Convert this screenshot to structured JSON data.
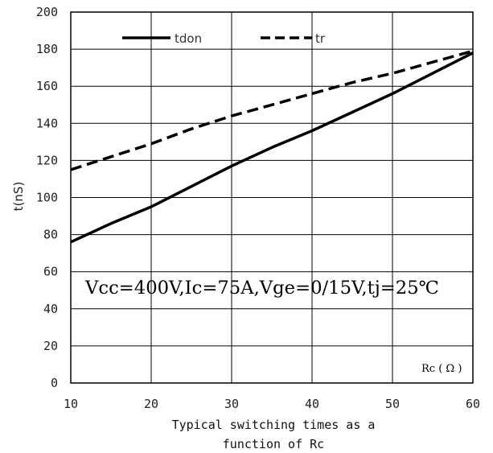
{
  "chart_data": {
    "type": "line",
    "title": "",
    "xlabel": "Rc ( Ω )",
    "ylabel": "t(nS)",
    "xlim": [
      10,
      60
    ],
    "ylim": [
      0,
      200
    ],
    "xticks": [
      10,
      20,
      30,
      40,
      50,
      60
    ],
    "yticks": [
      0,
      20,
      40,
      60,
      80,
      100,
      120,
      140,
      160,
      180,
      200
    ],
    "grid": true,
    "legend_position": "top",
    "series": [
      {
        "name": "tdon",
        "style": "solid",
        "x": [
          10,
          15,
          20,
          25,
          30,
          35,
          40,
          45,
          50,
          55,
          60
        ],
        "y": [
          76,
          86,
          95,
          106,
          117,
          127,
          136,
          146,
          156,
          167,
          178
        ]
      },
      {
        "name": "tr",
        "style": "dashed",
        "x": [
          10,
          15,
          20,
          25,
          30,
          35,
          40,
          45,
          50,
          55,
          60
        ],
        "y": [
          115,
          122,
          129,
          137,
          144,
          150,
          156,
          162,
          167,
          173,
          179
        ]
      }
    ],
    "annotation": "Vcc=400V,Ic=75A,Vge=0/15V,tj=25℃",
    "caption": [
      "Typical switching times as a",
      "function of Rc"
    ],
    "colors": {
      "lines": "#000000",
      "grid": "#000000"
    }
  }
}
